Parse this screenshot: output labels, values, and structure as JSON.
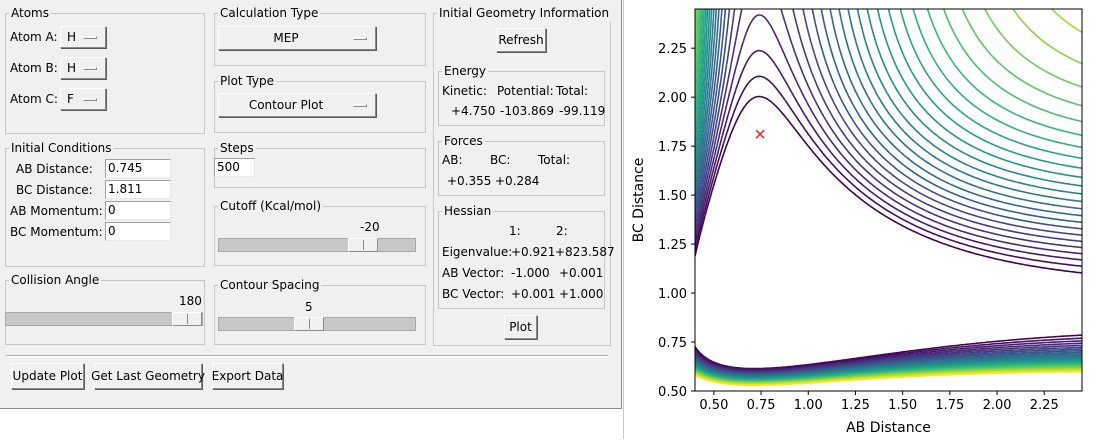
{
  "atoms": {
    "legend": "Atoms",
    "rows": [
      {
        "label": "Atom A:",
        "value": "H"
      },
      {
        "label": "Atom B:",
        "value": "H"
      },
      {
        "label": "Atom C:",
        "value": "F"
      }
    ]
  },
  "calc_type": {
    "legend": "Calculation Type",
    "value": "MEP"
  },
  "plot_type": {
    "legend": "Plot Type",
    "value": "Contour Plot"
  },
  "initial_conditions": {
    "legend": "Initial Conditions",
    "rows": [
      {
        "label": "AB Distance:",
        "value": "0.745"
      },
      {
        "label": "BC Distance:",
        "value": "1.811"
      },
      {
        "label": "AB Momentum:",
        "value": "0"
      },
      {
        "label": "BC Momentum:",
        "value": "0"
      }
    ]
  },
  "steps": {
    "legend": "Steps",
    "value": "500"
  },
  "cutoff": {
    "legend": "Cutoff (Kcal/mol)",
    "value": "-20",
    "fraction": 0.78
  },
  "collision": {
    "legend": "Collision Angle",
    "value": "180",
    "fraction": 1.0
  },
  "contour_spacing": {
    "legend": "Contour Spacing",
    "value": "5",
    "fraction": 0.45
  },
  "geometry": {
    "legend": "Initial Geometry Information",
    "refresh": "Refresh"
  },
  "energy": {
    "legend": "Energy",
    "kinetic_label": "Kinetic:",
    "potential_label": "Potential:",
    "total_label": "Total:",
    "kinetic": "+4.750",
    "potential": "-103.869",
    "total": "-99.119"
  },
  "forces": {
    "legend": "Forces",
    "ab_label": "AB:",
    "bc_label": "BC:",
    "total_label": "Total:",
    "ab": "+0.355",
    "bc": "+0.284"
  },
  "hessian": {
    "legend": "Hessian",
    "col1": "1:",
    "col2": "2:",
    "eig_label": "Eigenvalue:",
    "eig1": "+0.921",
    "eig2": "+823.587",
    "abv_label": "AB Vector:",
    "abv1": "-1.000",
    "abv2": "+0.001",
    "bcv_label": "BC Vector:",
    "bcv1": "+0.001",
    "bcv2": "+1.000"
  },
  "plot_button": "Plot",
  "bottom_buttons": {
    "update": "Update Plot",
    "last": "Get Last Geometry",
    "export": "Export Data"
  },
  "chart_data": {
    "type": "contour",
    "xlabel": "AB Distance",
    "ylabel": "BC Distance",
    "xlim": [
      0.4,
      2.45
    ],
    "ylim": [
      0.5,
      2.45
    ],
    "xticks": [
      "0.50",
      "0.75",
      "1.00",
      "1.25",
      "1.50",
      "1.75",
      "2.00",
      "2.25"
    ],
    "yticks": [
      "0.50",
      "0.75",
      "1.00",
      "1.25",
      "1.50",
      "1.75",
      "2.00",
      "2.25"
    ],
    "marker": {
      "x": 0.745,
      "y": 1.811,
      "symbol": "x",
      "color": "#e8261f"
    },
    "colormap": "viridis",
    "levels": 28
  }
}
